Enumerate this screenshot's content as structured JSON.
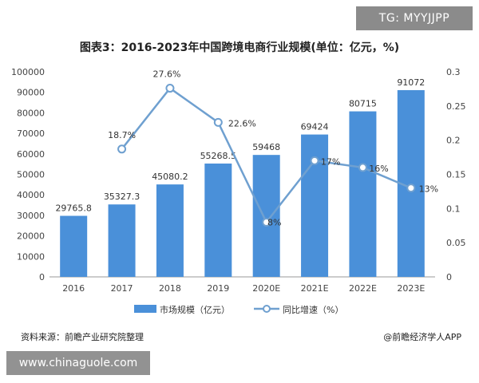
{
  "badge": "TG: MYYJJPP",
  "title": "图表3：2016-2023年中国跨境电商行业规模(单位：亿元，%)",
  "source": "资料来源：前瞻产业研究院整理",
  "brand": "@前瞻经济学人APP",
  "url_banner": "www.chinaguole.com",
  "colors": {
    "bar": "#4a90d9",
    "line": "#6fa0d0",
    "marker_fill": "#ffffff"
  },
  "chart_data": {
    "type": "bar",
    "title": "图表3：2016-2023年中国跨境电商行业规模(单位：亿元，%)",
    "categories": [
      "2016",
      "2017",
      "2018",
      "2019",
      "2020E",
      "2021E",
      "2022E",
      "2023E"
    ],
    "series": [
      {
        "name": "市场规模（亿元）",
        "type": "bar",
        "axis": "left",
        "values": [
          29765.8,
          35327.3,
          45080.2,
          55268.5,
          59468,
          69424,
          80715,
          91072
        ],
        "labels": [
          "29765.8",
          "35327.3",
          "45080.2",
          "55268.5",
          "59468",
          "69424",
          "80715",
          "91072"
        ]
      },
      {
        "name": "同比增速（%）",
        "type": "line",
        "axis": "right",
        "values": [
          null,
          0.187,
          0.276,
          0.226,
          0.08,
          0.17,
          0.16,
          0.13
        ],
        "labels": [
          "",
          "18.7%",
          "27.6%",
          "22.6%",
          "8%",
          "17%",
          "16%",
          "13%"
        ]
      }
    ],
    "left_axis": {
      "ylim": [
        0,
        100000
      ],
      "ticks": [
        "0",
        "10000",
        "20000",
        "30000",
        "40000",
        "50000",
        "60000",
        "70000",
        "80000",
        "90000",
        "100000"
      ]
    },
    "right_axis": {
      "ylim": [
        0,
        0.3
      ],
      "ticks": [
        "0",
        "0.05",
        "0.1",
        "0.15",
        "0.2",
        "0.25",
        "0.3"
      ]
    },
    "grid": false,
    "legend": "bottom-center"
  }
}
